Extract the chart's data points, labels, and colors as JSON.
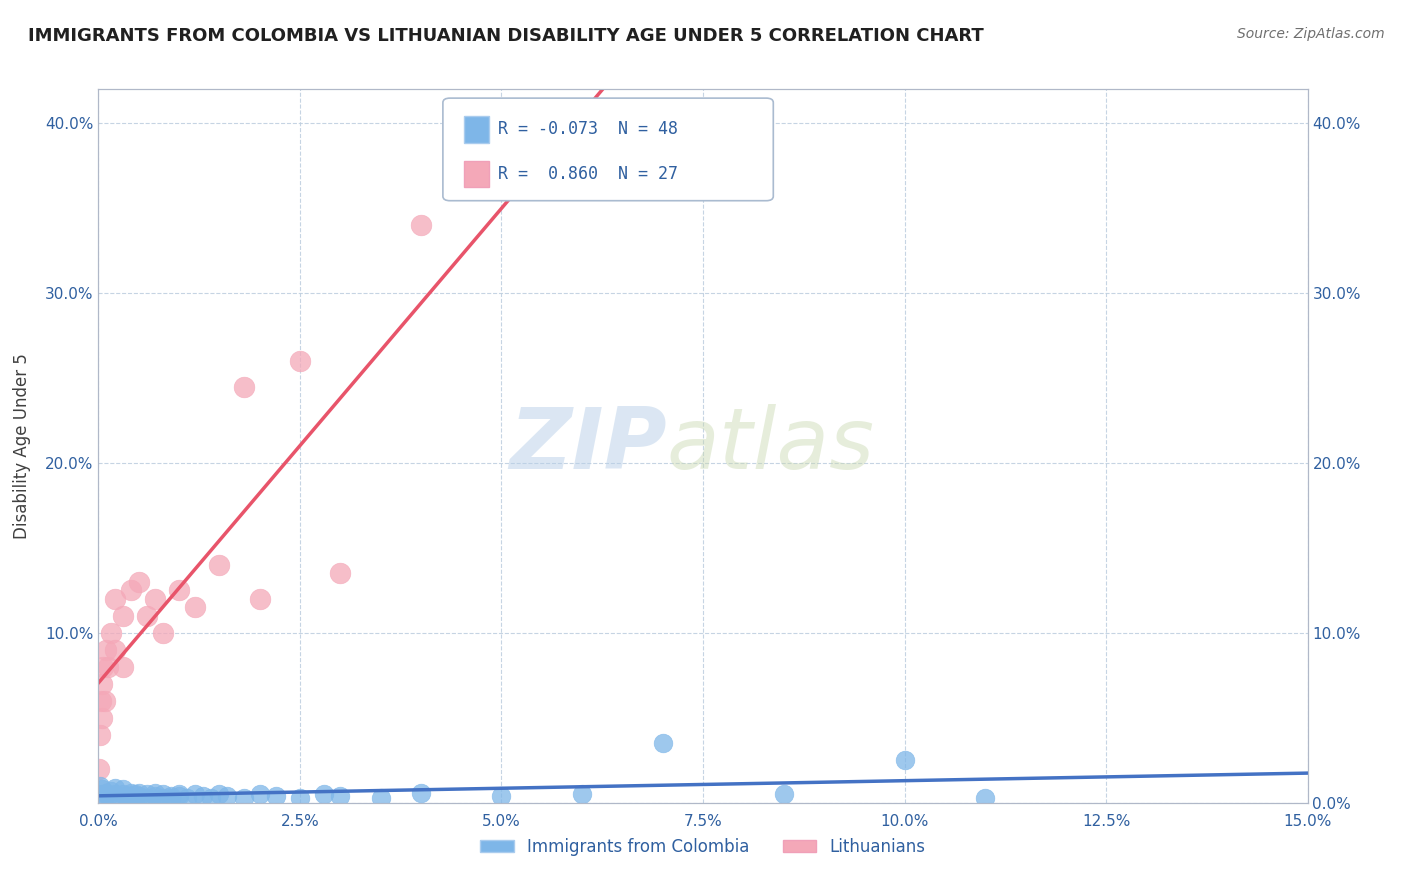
{
  "title": "IMMIGRANTS FROM COLOMBIA VS LITHUANIAN DISABILITY AGE UNDER 5 CORRELATION CHART",
  "source": "Source: ZipAtlas.com",
  "ylabel": "Disability Age Under 5",
  "xlim": [
    0.0,
    0.15
  ],
  "ylim": [
    0.0,
    0.42
  ],
  "xticks": [
    0.0,
    0.025,
    0.05,
    0.075,
    0.1,
    0.125,
    0.15
  ],
  "xtick_labels": [
    "0.0%",
    "2.5%",
    "5.0%",
    "7.5%",
    "10.0%",
    "12.5%",
    "15.0%"
  ],
  "yticks_left": [
    0.0,
    0.1,
    0.2,
    0.3,
    0.4
  ],
  "ytick_labels_left": [
    "",
    "10.0%",
    "20.0%",
    "30.0%",
    "40.0%"
  ],
  "yticks_right": [
    0.0,
    0.1,
    0.2,
    0.3,
    0.4
  ],
  "ytick_labels_right": [
    "0.0%",
    "10.0%",
    "20.0%",
    "30.0%",
    "40.0%"
  ],
  "series1_label": "Immigrants from Colombia",
  "series1_color": "#7eb6e8",
  "series1_R": "-0.073",
  "series1_N": "48",
  "series1_line_color": "#4472C4",
  "series2_label": "Lithuanians",
  "series2_color": "#f4a8b8",
  "series2_R": "0.860",
  "series2_N": "27",
  "series2_line_color": "#e8546a",
  "background_color": "#ffffff",
  "grid_color": "#c0d0e0",
  "watermark_zip": "ZIP",
  "watermark_atlas": "atlas",
  "colombia_x": [
    0.0002,
    0.0003,
    0.0005,
    0.0007,
    0.001,
    0.0012,
    0.0015,
    0.002,
    0.002,
    0.0025,
    0.003,
    0.003,
    0.0035,
    0.004,
    0.004,
    0.0045,
    0.005,
    0.005,
    0.006,
    0.006,
    0.007,
    0.007,
    0.008,
    0.008,
    0.009,
    0.009,
    0.01,
    0.01,
    0.011,
    0.012,
    0.013,
    0.014,
    0.015,
    0.016,
    0.018,
    0.02,
    0.022,
    0.025,
    0.028,
    0.03,
    0.035,
    0.04,
    0.05,
    0.06,
    0.07,
    0.085,
    0.1,
    0.11
  ],
  "colombia_y": [
    0.01,
    0.005,
    0.008,
    0.003,
    0.006,
    0.004,
    0.007,
    0.005,
    0.009,
    0.003,
    0.005,
    0.008,
    0.004,
    0.006,
    0.003,
    0.005,
    0.004,
    0.006,
    0.003,
    0.005,
    0.004,
    0.006,
    0.003,
    0.005,
    0.004,
    0.003,
    0.005,
    0.004,
    0.003,
    0.005,
    0.004,
    0.003,
    0.005,
    0.004,
    0.003,
    0.005,
    0.004,
    0.003,
    0.005,
    0.004,
    0.003,
    0.006,
    0.004,
    0.005,
    0.035,
    0.005,
    0.025,
    0.003
  ],
  "lithuanian_x": [
    0.0001,
    0.0002,
    0.0003,
    0.0004,
    0.0005,
    0.0006,
    0.0008,
    0.001,
    0.0012,
    0.0015,
    0.002,
    0.002,
    0.003,
    0.003,
    0.004,
    0.005,
    0.006,
    0.007,
    0.008,
    0.01,
    0.012,
    0.015,
    0.018,
    0.02,
    0.025,
    0.03,
    0.04
  ],
  "lithuanian_y": [
    0.02,
    0.04,
    0.06,
    0.05,
    0.07,
    0.08,
    0.06,
    0.09,
    0.08,
    0.1,
    0.09,
    0.12,
    0.11,
    0.08,
    0.125,
    0.13,
    0.11,
    0.12,
    0.1,
    0.125,
    0.115,
    0.14,
    0.245,
    0.12,
    0.26,
    0.135,
    0.34
  ]
}
